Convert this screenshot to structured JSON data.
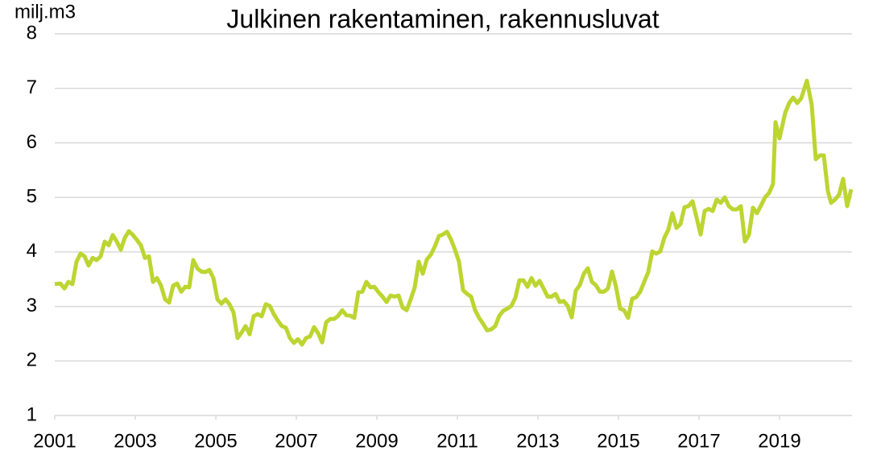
{
  "chart_data": {
    "type": "line",
    "title": "Julkinen rakentaminen, rakennusluvat",
    "y_label": "milj.m3",
    "xlim": [
      2001,
      2020.8
    ],
    "xticks": [
      2001,
      2003,
      2005,
      2007,
      2009,
      2011,
      2013,
      2015,
      2017,
      2019
    ],
    "ylim": [
      1,
      8
    ],
    "yticks": [
      1,
      2,
      3,
      4,
      5,
      6,
      7,
      8
    ],
    "grid": true,
    "series": [
      {
        "color": "#bcd531",
        "x": [
          2001.0,
          2001.14,
          2001.24,
          2001.34,
          2001.44,
          2001.54,
          2001.64,
          2001.74,
          2001.84,
          2001.94,
          2002.04,
          2002.14,
          2002.24,
          2002.34,
          2002.44,
          2002.54,
          2002.64,
          2002.74,
          2002.84,
          2002.94,
          2003.04,
          2003.14,
          2003.24,
          2003.34,
          2003.44,
          2003.54,
          2003.64,
          2003.74,
          2003.84,
          2003.94,
          2004.04,
          2004.14,
          2004.24,
          2004.34,
          2004.44,
          2004.54,
          2004.64,
          2004.74,
          2004.84,
          2004.94,
          2005.04,
          2005.14,
          2005.24,
          2005.34,
          2005.44,
          2005.54,
          2005.64,
          2005.74,
          2005.84,
          2005.94,
          2006.04,
          2006.14,
          2006.24,
          2006.34,
          2006.44,
          2006.54,
          2006.64,
          2006.74,
          2006.84,
          2006.94,
          2007.04,
          2007.14,
          2007.24,
          2007.34,
          2007.44,
          2007.54,
          2007.64,
          2007.74,
          2007.84,
          2007.94,
          2008.04,
          2008.14,
          2008.24,
          2008.34,
          2008.44,
          2008.54,
          2008.64,
          2008.74,
          2008.84,
          2008.94,
          2009.04,
          2009.14,
          2009.24,
          2009.34,
          2009.44,
          2009.54,
          2009.64,
          2009.74,
          2009.84,
          2009.94,
          2010.04,
          2010.14,
          2010.24,
          2010.34,
          2010.44,
          2010.54,
          2010.64,
          2010.74,
          2010.84,
          2010.94,
          2011.04,
          2011.14,
          2011.24,
          2011.34,
          2011.44,
          2011.54,
          2011.64,
          2011.74,
          2011.84,
          2011.94,
          2012.04,
          2012.14,
          2012.24,
          2012.34,
          2012.44,
          2012.54,
          2012.64,
          2012.74,
          2012.84,
          2012.94,
          2013.04,
          2013.14,
          2013.24,
          2013.34,
          2013.44,
          2013.54,
          2013.64,
          2013.74,
          2013.84,
          2013.94,
          2014.04,
          2014.14,
          2014.24,
          2014.34,
          2014.44,
          2014.54,
          2014.64,
          2014.74,
          2014.84,
          2014.94,
          2015.04,
          2015.14,
          2015.24,
          2015.34,
          2015.44,
          2015.54,
          2015.64,
          2015.74,
          2015.84,
          2015.94,
          2016.04,
          2016.14,
          2016.24,
          2016.34,
          2016.44,
          2016.54,
          2016.64,
          2016.74,
          2016.84,
          2016.94,
          2017.04,
          2017.14,
          2017.24,
          2017.34,
          2017.44,
          2017.54,
          2017.64,
          2017.74,
          2017.84,
          2017.94,
          2018.04,
          2018.14,
          2018.24,
          2018.34,
          2018.44,
          2018.54,
          2018.64,
          2018.74,
          2018.84,
          2018.9,
          2019.0,
          2019.14,
          2019.24,
          2019.34,
          2019.44,
          2019.54,
          2019.68,
          2019.8,
          2019.9,
          2020.0,
          2020.1,
          2020.2,
          2020.28,
          2020.38,
          2020.48,
          2020.58,
          2020.68,
          2020.78
        ],
        "values": [
          3.41,
          3.42,
          3.33,
          3.45,
          3.41,
          3.82,
          3.97,
          3.92,
          3.75,
          3.89,
          3.85,
          3.92,
          4.19,
          4.12,
          4.31,
          4.19,
          4.04,
          4.26,
          4.38,
          4.31,
          4.22,
          4.12,
          3.89,
          3.92,
          3.45,
          3.52,
          3.38,
          3.13,
          3.07,
          3.38,
          3.42,
          3.27,
          3.36,
          3.35,
          3.85,
          3.7,
          3.64,
          3.63,
          3.67,
          3.52,
          3.13,
          3.05,
          3.13,
          3.04,
          2.89,
          2.42,
          2.52,
          2.64,
          2.49,
          2.82,
          2.86,
          2.82,
          3.04,
          3.01,
          2.86,
          2.74,
          2.64,
          2.61,
          2.42,
          2.33,
          2.4,
          2.3,
          2.42,
          2.45,
          2.62,
          2.51,
          2.34,
          2.71,
          2.77,
          2.77,
          2.83,
          2.93,
          2.84,
          2.83,
          2.79,
          3.26,
          3.27,
          3.45,
          3.35,
          3.36,
          3.26,
          3.18,
          3.08,
          3.2,
          3.18,
          3.2,
          2.98,
          2.93,
          3.13,
          3.35,
          3.82,
          3.6,
          3.86,
          3.95,
          4.1,
          4.29,
          4.32,
          4.37,
          4.23,
          4.04,
          3.82,
          3.3,
          3.23,
          3.18,
          2.93,
          2.79,
          2.68,
          2.56,
          2.58,
          2.64,
          2.83,
          2.92,
          2.96,
          3.01,
          3.16,
          3.48,
          3.48,
          3.36,
          3.52,
          3.38,
          3.47,
          3.33,
          3.18,
          3.18,
          3.23,
          3.08,
          3.1,
          3.01,
          2.8,
          3.29,
          3.39,
          3.6,
          3.7,
          3.45,
          3.39,
          3.27,
          3.27,
          3.33,
          3.64,
          3.36,
          2.96,
          2.93,
          2.79,
          3.14,
          3.17,
          3.27,
          3.45,
          3.63,
          4.01,
          3.97,
          4.01,
          4.26,
          4.41,
          4.71,
          4.44,
          4.51,
          4.82,
          4.84,
          4.93,
          4.63,
          4.32,
          4.75,
          4.79,
          4.75,
          4.96,
          4.9,
          5.0,
          4.84,
          4.78,
          4.78,
          4.84,
          4.19,
          4.31,
          4.81,
          4.71,
          4.85,
          5.0,
          5.08,
          5.25,
          6.38,
          6.08,
          6.55,
          6.73,
          6.83,
          6.73,
          6.82,
          7.14,
          6.7,
          5.7,
          5.77,
          5.77,
          5.12,
          4.9,
          4.96,
          5.05,
          5.34,
          4.84,
          5.15
        ]
      }
    ]
  }
}
